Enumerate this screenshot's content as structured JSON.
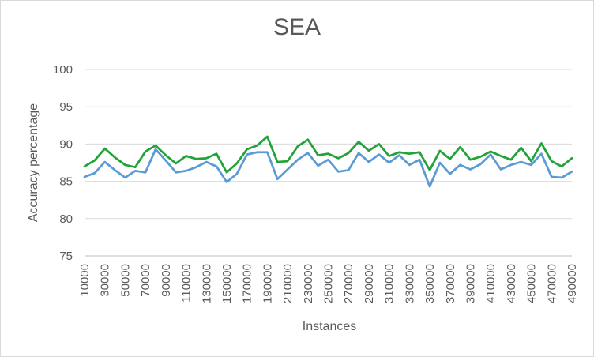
{
  "chart_data": {
    "type": "line",
    "title": "SEA",
    "xlabel": "Instances",
    "ylabel": "Accuracy percentage",
    "ylim": [
      75,
      100
    ],
    "yticks": [
      75,
      80,
      85,
      90,
      95,
      100
    ],
    "grid": true,
    "x": [
      10000,
      20000,
      30000,
      40000,
      50000,
      60000,
      70000,
      80000,
      90000,
      100000,
      110000,
      120000,
      130000,
      140000,
      150000,
      160000,
      170000,
      180000,
      190000,
      200000,
      210000,
      220000,
      230000,
      240000,
      250000,
      260000,
      270000,
      280000,
      290000,
      300000,
      310000,
      320000,
      330000,
      340000,
      350000,
      360000,
      370000,
      380000,
      390000,
      400000,
      410000,
      420000,
      430000,
      440000,
      450000,
      460000,
      470000,
      480000,
      490000
    ],
    "xtick_labels": [
      "10000",
      "30000",
      "50000",
      "70000",
      "90000",
      "110000",
      "130000",
      "150000",
      "170000",
      "190000",
      "210000",
      "230000",
      "250000",
      "270000",
      "290000",
      "310000",
      "330000",
      "350000",
      "370000",
      "390000",
      "410000",
      "430000",
      "450000",
      "470000",
      "490000"
    ],
    "series": [
      {
        "color": "#22a33a",
        "values": [
          87.0,
          87.8,
          89.4,
          88.2,
          87.2,
          86.9,
          89.0,
          89.8,
          88.5,
          87.4,
          88.4,
          88.0,
          88.1,
          88.7,
          86.2,
          87.4,
          89.3,
          89.8,
          91.0,
          87.6,
          87.7,
          89.7,
          90.6,
          88.5,
          88.7,
          88.1,
          88.8,
          90.3,
          89.1,
          90.0,
          88.4,
          88.9,
          88.7,
          88.9,
          86.5,
          89.1,
          88.0,
          89.6,
          87.9,
          88.3,
          89.0,
          88.4,
          87.9,
          89.5,
          87.7,
          90.1,
          87.7,
          87.0,
          88.1
        ]
      },
      {
        "color": "#5b9bd5",
        "values": [
          85.6,
          86.1,
          87.6,
          86.5,
          85.5,
          86.4,
          86.2,
          89.3,
          87.8,
          86.2,
          86.4,
          86.9,
          87.6,
          87.0,
          84.9,
          86.0,
          88.6,
          88.9,
          88.9,
          85.3,
          86.6,
          87.9,
          88.8,
          87.1,
          87.9,
          86.3,
          86.5,
          88.8,
          87.6,
          88.6,
          87.5,
          88.5,
          87.2,
          87.9,
          84.3,
          87.5,
          86.0,
          87.2,
          86.6,
          87.3,
          88.6,
          86.6,
          87.2,
          87.6,
          87.2,
          88.7,
          85.6,
          85.5,
          86.3
        ]
      }
    ]
  }
}
